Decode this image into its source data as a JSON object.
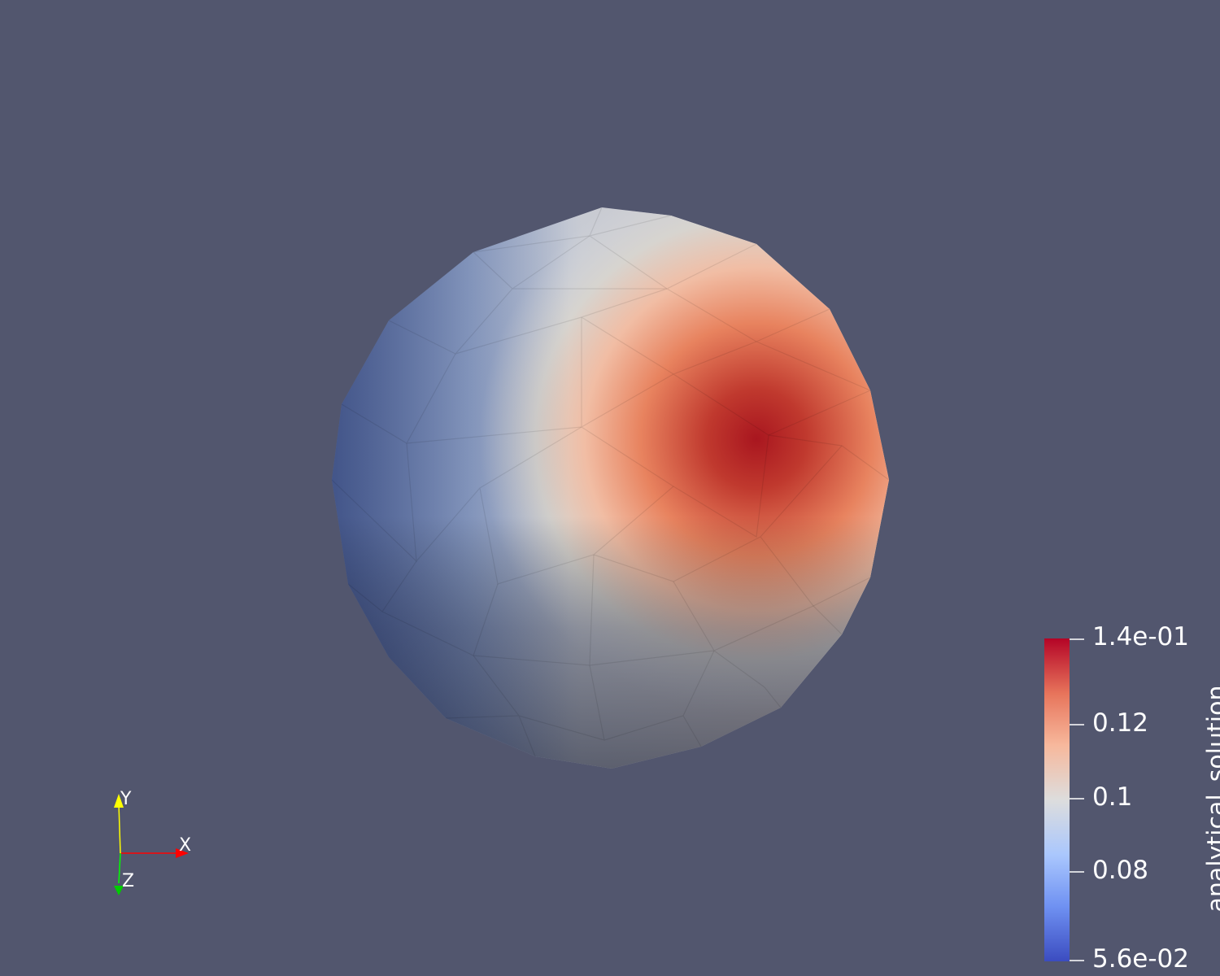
{
  "colorbar": {
    "title": "analytical_solution",
    "max_label": "1.4e-01",
    "min_label": "5.6e-02",
    "min_value": 0.056,
    "max_value": 0.14,
    "colormap": "cool-to-warm",
    "colors": [
      "#3b4cc0",
      "#7396f5",
      "#b0cbfc",
      "#dddddd",
      "#f6bfa5",
      "#e57f62",
      "#b40426"
    ],
    "ticks": [
      {
        "label": "0.12",
        "value": 0.12
      },
      {
        "label": "0.1",
        "value": 0.1
      },
      {
        "label": "0.08",
        "value": 0.08
      }
    ]
  },
  "axes": {
    "x_label": "X",
    "y_label": "Y",
    "z_label": "Z",
    "x_color": "#ff0000",
    "y_color": "#ffff00",
    "z_color": "#00ff00"
  },
  "background_color": "#52566e",
  "object": {
    "name": "sphere",
    "representation": "surface"
  }
}
